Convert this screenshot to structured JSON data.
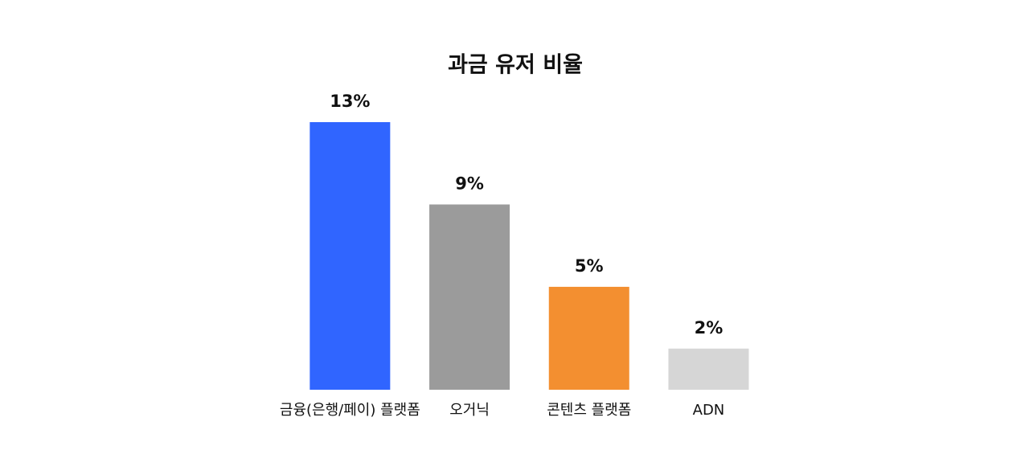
{
  "chart_data": {
    "type": "bar",
    "title": "과금 유저 비율",
    "categories": [
      "금융(은행/페이) 플랫폼",
      "오거닉",
      "콘텐츠 플랫폼",
      "ADN"
    ],
    "values": [
      13,
      9,
      5,
      2
    ],
    "value_labels": [
      "13%",
      "9%",
      "5%",
      "2%"
    ],
    "colors": [
      "#3065ff",
      "#9b9b9b",
      "#f38f30",
      "#d6d6d6"
    ],
    "ylim": [
      0,
      13
    ]
  }
}
